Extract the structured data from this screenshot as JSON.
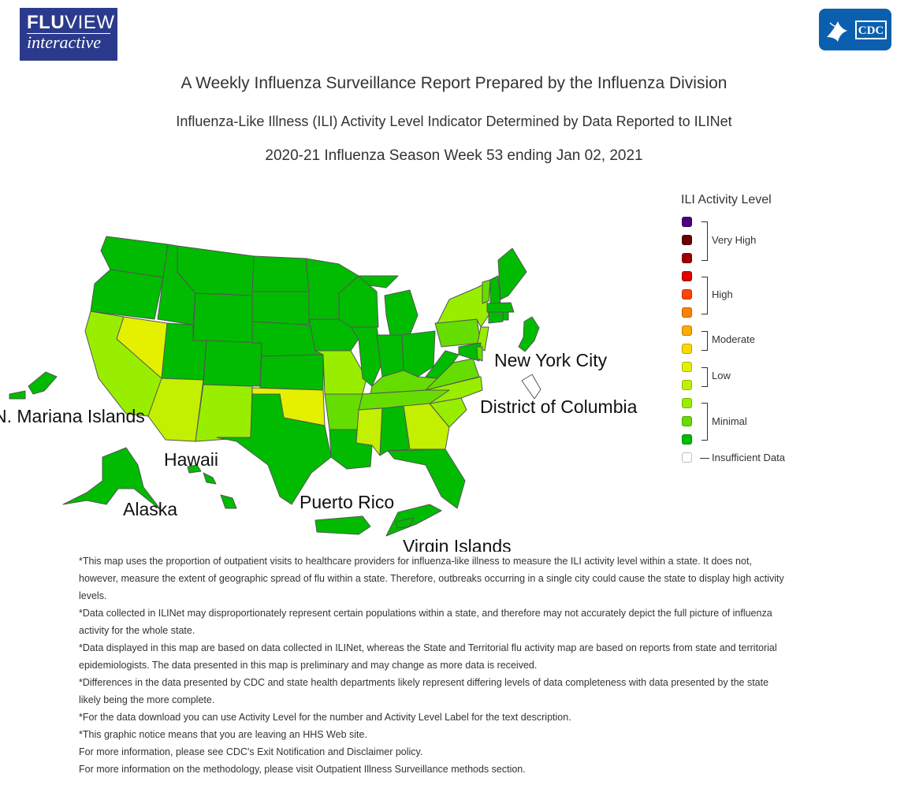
{
  "header": {
    "logo_fluview": {
      "line1_bold": "FLU",
      "line1_rest": "VIEW",
      "line2": "interactive"
    },
    "logo_cdc": {
      "text": "CDC"
    }
  },
  "titles": {
    "main": "A Weekly Influenza Surveillance Report Prepared by the Influenza Division",
    "subtitle": "Influenza-Like Illness (ILI) Activity Level Indicator Determined by Data Reported to ILINet",
    "week": "2020-21 Influenza Season Week 53 ending Jan 02, 2021"
  },
  "map_labels": {
    "new_york_city": "New York City",
    "district_of_columbia": "District of Columbia",
    "n_mariana": "N. Mariana Islands",
    "hawaii": "Hawaii",
    "alaska": "Alaska",
    "puerto_rico": "Puerto Rico",
    "virgin_islands": "Virgin Islands"
  },
  "legend": {
    "title": "ILI Activity Level",
    "levels": [
      {
        "level": 13,
        "color": "#4b0080"
      },
      {
        "level": 12,
        "color": "#6a0000"
      },
      {
        "level": 11,
        "color": "#a00000"
      },
      {
        "level": 10,
        "color": "#dd0000"
      },
      {
        "level": 9,
        "color": "#ff4500"
      },
      {
        "level": 8,
        "color": "#ff8000"
      },
      {
        "level": 7,
        "color": "#ffaa00"
      },
      {
        "level": 6,
        "color": "#ffd700"
      },
      {
        "level": 5,
        "color": "#e5f000"
      },
      {
        "level": 4,
        "color": "#c2f000"
      },
      {
        "level": 3,
        "color": "#99ee00"
      },
      {
        "level": 2,
        "color": "#66dd00"
      },
      {
        "level": 1,
        "color": "#00bb00"
      },
      {
        "level": 0,
        "color": "#ffffff"
      }
    ],
    "groups": {
      "very_high": "Very High",
      "high": "High",
      "moderate": "Moderate",
      "low": "Low",
      "minimal": "Minimal",
      "insufficient": "Insufficient Data"
    }
  },
  "map_colors": {
    "minimal_dark": "#00bb00",
    "minimal_mid": "#66dd00",
    "minimal_light": "#99ee00",
    "low_light": "#c2f000",
    "low_dark": "#e5f000",
    "border": "#555555"
  },
  "notes": [
    "*This map uses the proportion of outpatient visits to healthcare providers for influenza-like illness to measure the ILI activity level within a state. It does not, however, measure the extent of geographic spread of flu within a state. Therefore, outbreaks occurring in a single city could cause the state to display high activity levels.",
    "*Data collected in ILINet may disproportionately represent certain populations within a state, and therefore may not accurately depict the full picture of influenza activity for the whole state.",
    "*Data displayed in this map are based on data collected in ILINet, whereas the State and Territorial flu activity map are based on reports from state and territorial epidemiologists. The data presented in this map is preliminary and may change as more data is received.",
    "*Differences in the data presented by CDC and state health departments likely represent differing levels of data completeness with data presented by the state likely being the more complete.",
    "*For the data download you can use Activity Level for the number and Activity Level Label for the text description.",
    "*This graphic notice means that you are leaving an HHS Web site.",
    "For more information, please see CDC's Exit Notification and Disclaimer policy.",
    "For more information on the methodology, please visit Outpatient Illness Surveillance methods section."
  ]
}
